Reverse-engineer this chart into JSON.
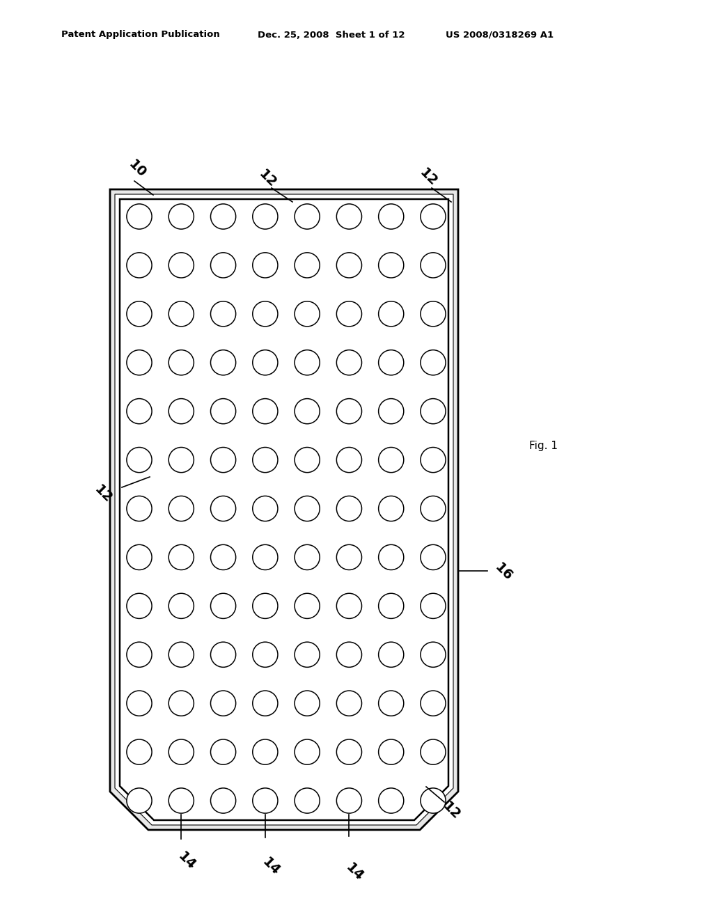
{
  "bg_color": "#ffffff",
  "header_line1": "Patent Application Publication",
  "header_line2": "Dec. 25, 2008  Sheet 1 of 12",
  "header_line3": "US 2008/0318269 A1",
  "fig_label": "Fig. 1",
  "border_color": "#000000",
  "n_rows": 13,
  "n_cols": 8,
  "circle_lw": 1.1,
  "circle_color": "#000000",
  "circle_fill": "#ffffff",
  "ann_fontsize": 14,
  "ann_fontweight": "bold"
}
